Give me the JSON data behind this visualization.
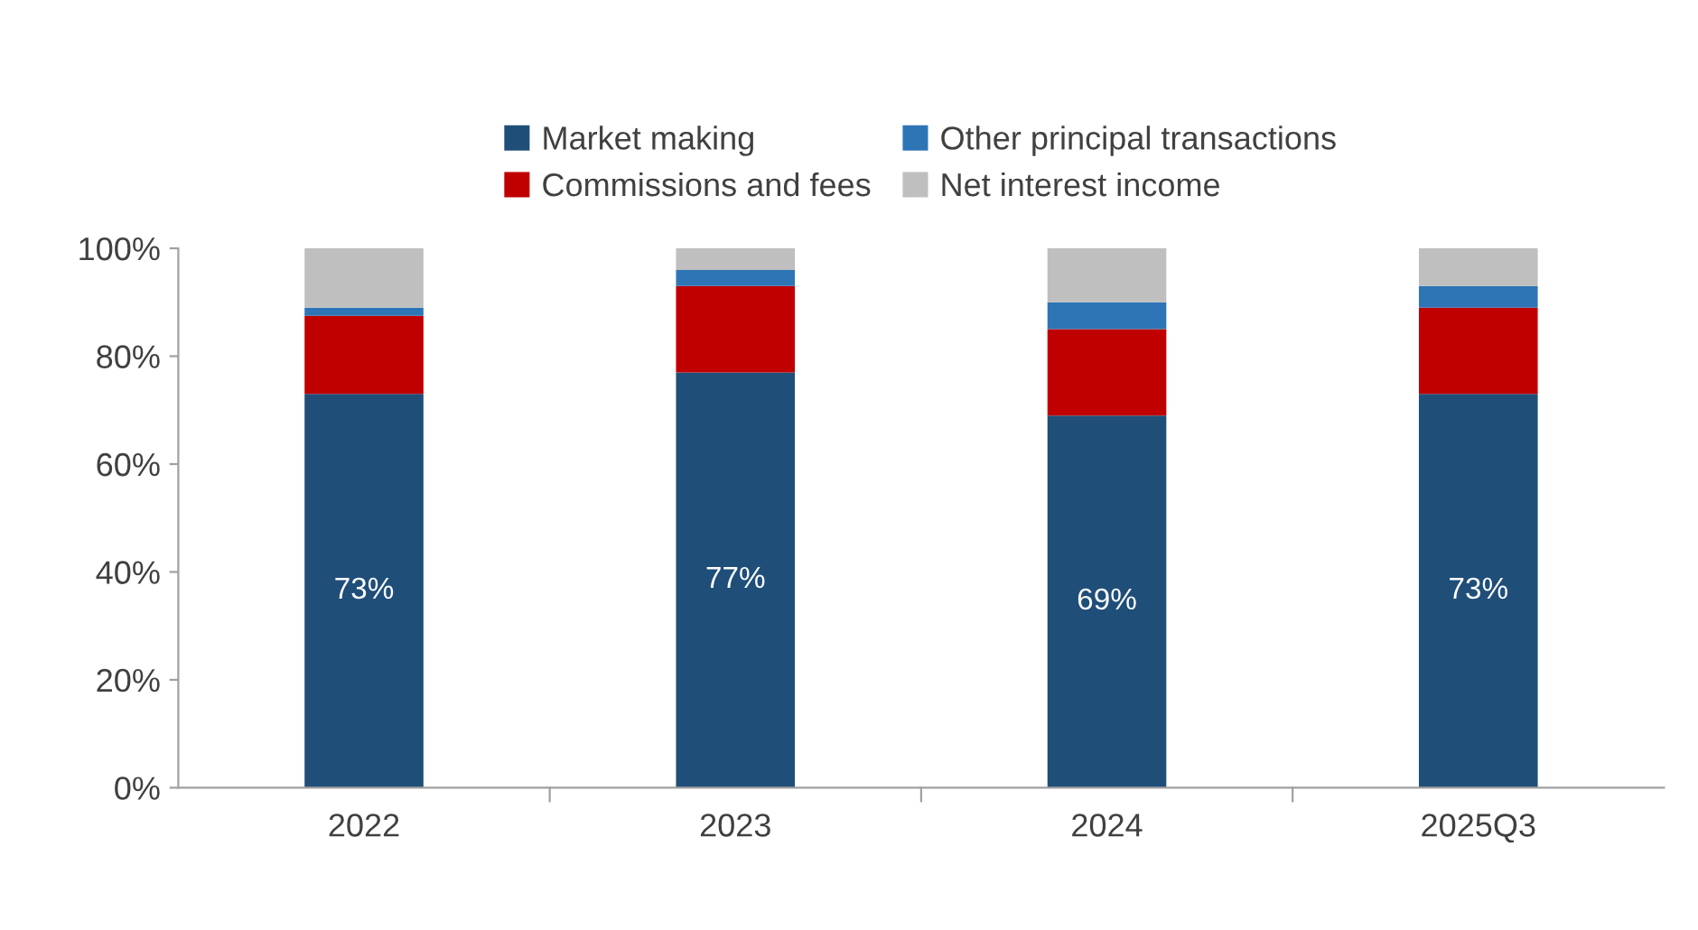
{
  "chart_data": {
    "type": "bar",
    "stacked": true,
    "categories": [
      "2022",
      "2023",
      "2024",
      "2025Q3"
    ],
    "series": [
      {
        "name": "Market making",
        "color": "#1f4e79",
        "values": [
          73,
          77,
          69,
          73
        ],
        "value_labels": [
          "73%",
          "77%",
          "69%",
          "73%"
        ]
      },
      {
        "name": "Commissions and fees",
        "color": "#c00000",
        "values": [
          14.5,
          16,
          16,
          16
        ]
      },
      {
        "name": "Other principal transactions",
        "color": "#2e75b6",
        "values": [
          1.5,
          3,
          5,
          4
        ]
      },
      {
        "name": "Net interest income",
        "color": "#bfbfbf",
        "values": [
          11,
          4,
          10,
          7
        ]
      }
    ],
    "ylim": [
      0,
      100
    ],
    "yticks": [
      {
        "value": 0,
        "label": "0%"
      },
      {
        "value": 20,
        "label": "20%"
      },
      {
        "value": 40,
        "label": "40%"
      },
      {
        "value": 60,
        "label": "60%"
      },
      {
        "value": 80,
        "label": "80%"
      },
      {
        "value": 100,
        "label": "100%"
      }
    ],
    "grid": false,
    "legend": "top"
  }
}
